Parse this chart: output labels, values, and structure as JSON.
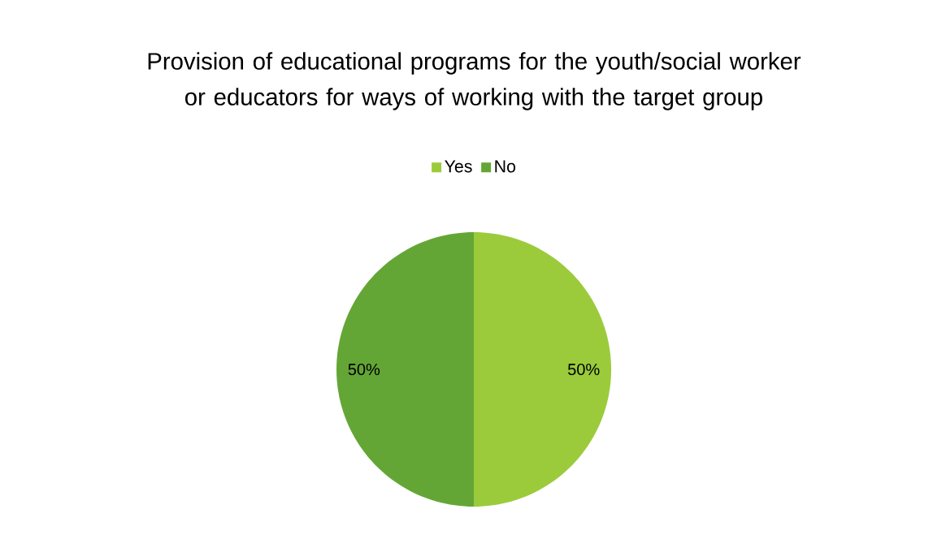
{
  "chart_data": {
    "type": "pie",
    "title": "Provision of educational programs for the youth/social worker or educators for ways of working with the target group",
    "categories": [
      "Yes",
      "No"
    ],
    "values": [
      50,
      50
    ],
    "colors": [
      "#9bcb3b",
      "#64a636"
    ],
    "value_labels": [
      "50%",
      "50%"
    ],
    "legend": "top"
  }
}
